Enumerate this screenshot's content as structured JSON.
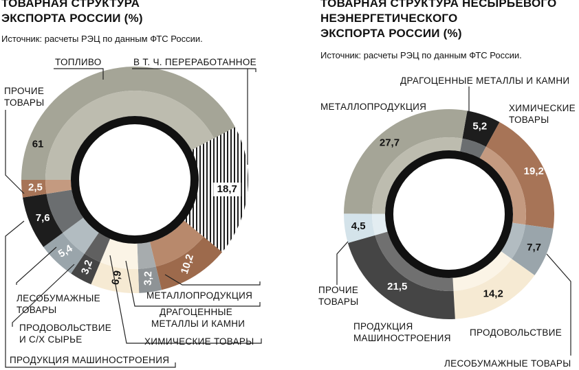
{
  "chart_data": [
    {
      "type": "pie",
      "title": [
        "ТОВАРНАЯ СТРУКТУРА",
        "ЭКСПОРТА РОССИИ (%)"
      ],
      "source": "Источник: расчеты РЭЦ по данным ФТС России.",
      "slices": [
        {
          "name": "ТОПЛИВО",
          "value": 61,
          "color": "#a5a597",
          "inner_color": "#bdbcaf"
        },
        {
          "name": "МЕТАЛЛОПРОДУКЦИЯ",
          "value": 10.2,
          "color": "#9d6a4c",
          "inner_color": "#b8896c"
        },
        {
          "name": "ДРАГОЦЕННЫЕ МЕТАЛЛЫ И КАМНИ",
          "value": 3.2,
          "color": "#8e9396",
          "inner_color": "#a7acae"
        },
        {
          "name": "ХИМИЧЕСКИЕ ТОВАРЫ",
          "value": 6.9,
          "color": "#f6ead3",
          "inner_color": "#fbf4e6"
        },
        {
          "name": "ПРОДУКЦИЯ МАШИНОСТРОЕНИЯ",
          "value": 3.2,
          "color": "#454545",
          "inner_color": "#606060"
        },
        {
          "name": "ПРОДОВОЛЬСТВИЕ И С/Х СЫРЬЕ",
          "value": 5.4,
          "color": "#9aa5ab",
          "inner_color": "#b2bcc1"
        },
        {
          "name": "ЛЕСОБУМАЖНЫЕ ТОВАРЫ",
          "value": 7.6,
          "color": "#1d1d1d",
          "inner_color": "#6b6e70"
        },
        {
          "name": "ПРОЧИЕ ТОВАРЫ",
          "value": 2.5,
          "color": "#a77457",
          "inner_color": "#c49a80"
        }
      ],
      "sub_slice": {
        "name": "В Т. Ч. ПЕРЕРАБОТАННОЕ",
        "value": 18.7,
        "of": "ТОПЛИВО"
      },
      "annotations": {
        "fuel": "ТОПЛИВО",
        "processed": "В Т. Ч. ПЕРЕРАБОТАННОЕ",
        "other": [
          "ПРОЧИЕ",
          "ТОВАРЫ"
        ],
        "metal": "МЕТАЛЛОПРОДУКЦИЯ",
        "precious": [
          "ДРАГОЦЕННЫЕ",
          "МЕТАЛЛЫ И КАМНИ"
        ],
        "chem": "ХИМИЧЕСКИЕ ТОВАРЫ",
        "forest": [
          "ЛЕСОБУМАЖНЫЕ",
          "ТОВАРЫ"
        ],
        "food": [
          "ПРОДОВОЛЬСТВИЕ",
          "И С/Х СЫРЬЕ"
        ],
        "mach": "ПРОДУКЦИЯ МАШИНОСТРОЕНИЯ"
      }
    },
    {
      "type": "pie",
      "title": [
        "ТОВАРНАЯ СТРУКТУРА НЕСЫРЬЕВОГО",
        "НЕЭНЕРГЕТИЧЕСКОГО",
        "ЭКСПОРТА РОССИИ (%)"
      ],
      "source": "Источник: расчеты РЭЦ по данным ФТС России.",
      "slices": [
        {
          "name": "ДРАГОЦЕННЫЕ МЕТАЛЛЫ И КАМНИ",
          "value": 5.2,
          "color": "#1d1d1d",
          "inner_color": "#6b6e70"
        },
        {
          "name": "ХИМИЧЕСКИЕ ТОВАРЫ",
          "value": 19.2,
          "color": "#a77457",
          "inner_color": "#c49a80"
        },
        {
          "name": "ЛЕСОБУМАЖНЫЕ ТОВАРЫ",
          "value": 7.7,
          "color": "#9aa5ab",
          "inner_color": "#b2bcc1"
        },
        {
          "name": "ПРОДОВОЛЬСТВИЕ",
          "value": 14.2,
          "color": "#f6ead3",
          "inner_color": "#fbf4e6"
        },
        {
          "name": "ПРОДУКЦИЯ МАШИНОСТРОЕНИЯ",
          "value": 21.5,
          "color": "#454545",
          "inner_color": "#707070"
        },
        {
          "name": "ПРОЧИЕ ТОВАРЫ",
          "value": 4.5,
          "color": "#d4e3ea",
          "inner_color": "#e3edf1"
        },
        {
          "name": "МЕТАЛЛОПРОДУКЦИЯ",
          "value": 27.7,
          "color": "#a5a597",
          "inner_color": "#bdbcaf"
        }
      ],
      "annotations": {
        "precious": "ДРАГОЦЕННЫЕ МЕТАЛЛЫ И КАМНИ",
        "chem": [
          "ХИМИЧЕСКИЕ",
          "ТОВАРЫ"
        ],
        "metal": "МЕТАЛЛОПРОДУКЦИЯ",
        "other": [
          "ПРОЧИЕ",
          "ТОВАРЫ"
        ],
        "mach": [
          "ПРОДУКЦИЯ",
          "МАШИНОСТРОЕНИЯ"
        ],
        "food": "ПРОДОВОЛЬСТВИЕ",
        "forest": "ЛЕСОБУМАЖНЫЕ ТОВАРЫ"
      }
    }
  ]
}
